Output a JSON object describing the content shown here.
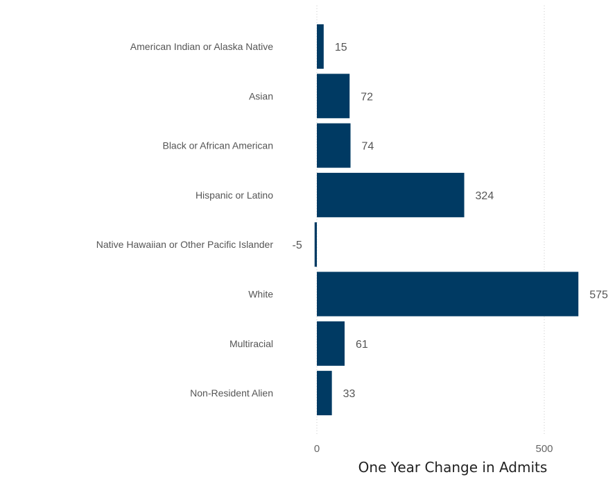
{
  "chart_data": {
    "type": "bar",
    "orientation": "horizontal",
    "categories": [
      "American Indian or Alaska Native",
      "Asian",
      "Black or African American",
      "Hispanic or Latino",
      "Native Hawaiian or Other Pacific Islander",
      "White",
      "Multiracial",
      "Non-Resident Alien"
    ],
    "values": [
      15,
      72,
      74,
      324,
      -5,
      575,
      61,
      33
    ],
    "value_labels": [
      "15",
      "72",
      "74",
      "324",
      "-5",
      "575",
      "61",
      "33"
    ],
    "xlabel": "One Year Change in Admits",
    "xticks": [
      0,
      500
    ],
    "xtick_labels": [
      "0",
      "500"
    ],
    "xlim": [
      0,
      575
    ],
    "grid": true,
    "legend": "none",
    "bar_color": "#003a63"
  }
}
